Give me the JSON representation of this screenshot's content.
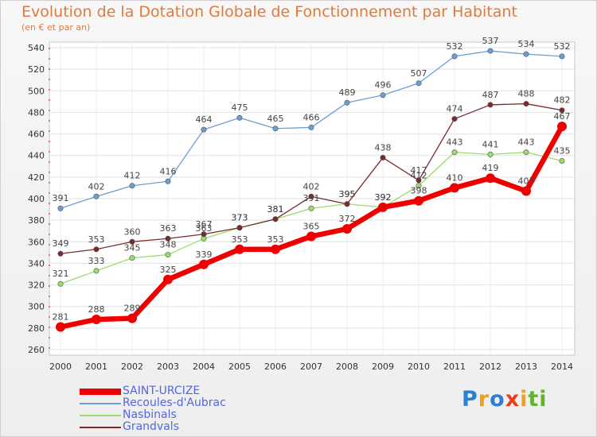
{
  "chart_data": {
    "type": "line",
    "title": "Evolution de la Dotation Globale de Fonctionnement par Habitant",
    "subtitle": "(en € et par an)",
    "xlabel": "",
    "ylabel": "",
    "ylim": [
      260,
      540
    ],
    "yticks": [
      260,
      280,
      300,
      320,
      340,
      360,
      380,
      400,
      420,
      440,
      460,
      480,
      500,
      520,
      540
    ],
    "grid": true,
    "legend_position": "bottom-left",
    "x": [
      2000,
      2001,
      2002,
      2003,
      2004,
      2005,
      2006,
      2007,
      2008,
      2009,
      2010,
      2011,
      2012,
      2013,
      2014
    ],
    "series": [
      {
        "name": "SAINT-URCIZE",
        "color": "#ee0000",
        "values": [
          281,
          288,
          289,
          325,
          339,
          353,
          353,
          365,
          372,
          392,
          398,
          410,
          419,
          407,
          467
        ],
        "labels": [
          "281",
          "288",
          "289",
          "325",
          "339",
          "353",
          "353",
          "365",
          "372",
          "392",
          "398",
          "410",
          "419",
          "407",
          "467"
        ]
      },
      {
        "name": "Recoules-d'Aubrac",
        "color": "#6a9fd4",
        "values": [
          391,
          402,
          412,
          416,
          464,
          475,
          465,
          466,
          489,
          496,
          507,
          532,
          537,
          534,
          532
        ],
        "labels": [
          "391",
          "402",
          "412",
          "416",
          "464",
          "475",
          "465",
          "466",
          "489",
          "496",
          "507",
          "532",
          "537",
          "534",
          "532"
        ]
      },
      {
        "name": "Nasbinals",
        "color": "#9bdb6e",
        "values": [
          321,
          333,
          345,
          348,
          363,
          373,
          381,
          391,
          395,
          392,
          412,
          443,
          441,
          443,
          435
        ],
        "labels": [
          "321",
          "333",
          "345",
          "348",
          "363",
          "373",
          "381",
          "391",
          "395",
          "392",
          "412",
          "443",
          "441",
          "443",
          "435"
        ]
      },
      {
        "name": "Grandvals",
        "color": "#7a2a2a",
        "values": [
          349,
          353,
          360,
          363,
          367,
          373,
          381,
          402,
          395,
          438,
          417,
          474,
          487,
          488,
          482
        ],
        "labels": [
          "349",
          "353",
          "360",
          "363",
          "367",
          "373",
          "381",
          "402",
          "395",
          "438",
          "417",
          "474",
          "487",
          "488",
          "482"
        ]
      }
    ]
  },
  "logo": {
    "text": "Proxiti",
    "letters": [
      "P",
      "r",
      "o",
      "x",
      "i",
      "t",
      "i"
    ],
    "colors": [
      "#2b7fd4",
      "#f0a020",
      "#2b7fd4",
      "#e8401c",
      "#f0a020",
      "#62b330",
      "#62b330"
    ]
  }
}
